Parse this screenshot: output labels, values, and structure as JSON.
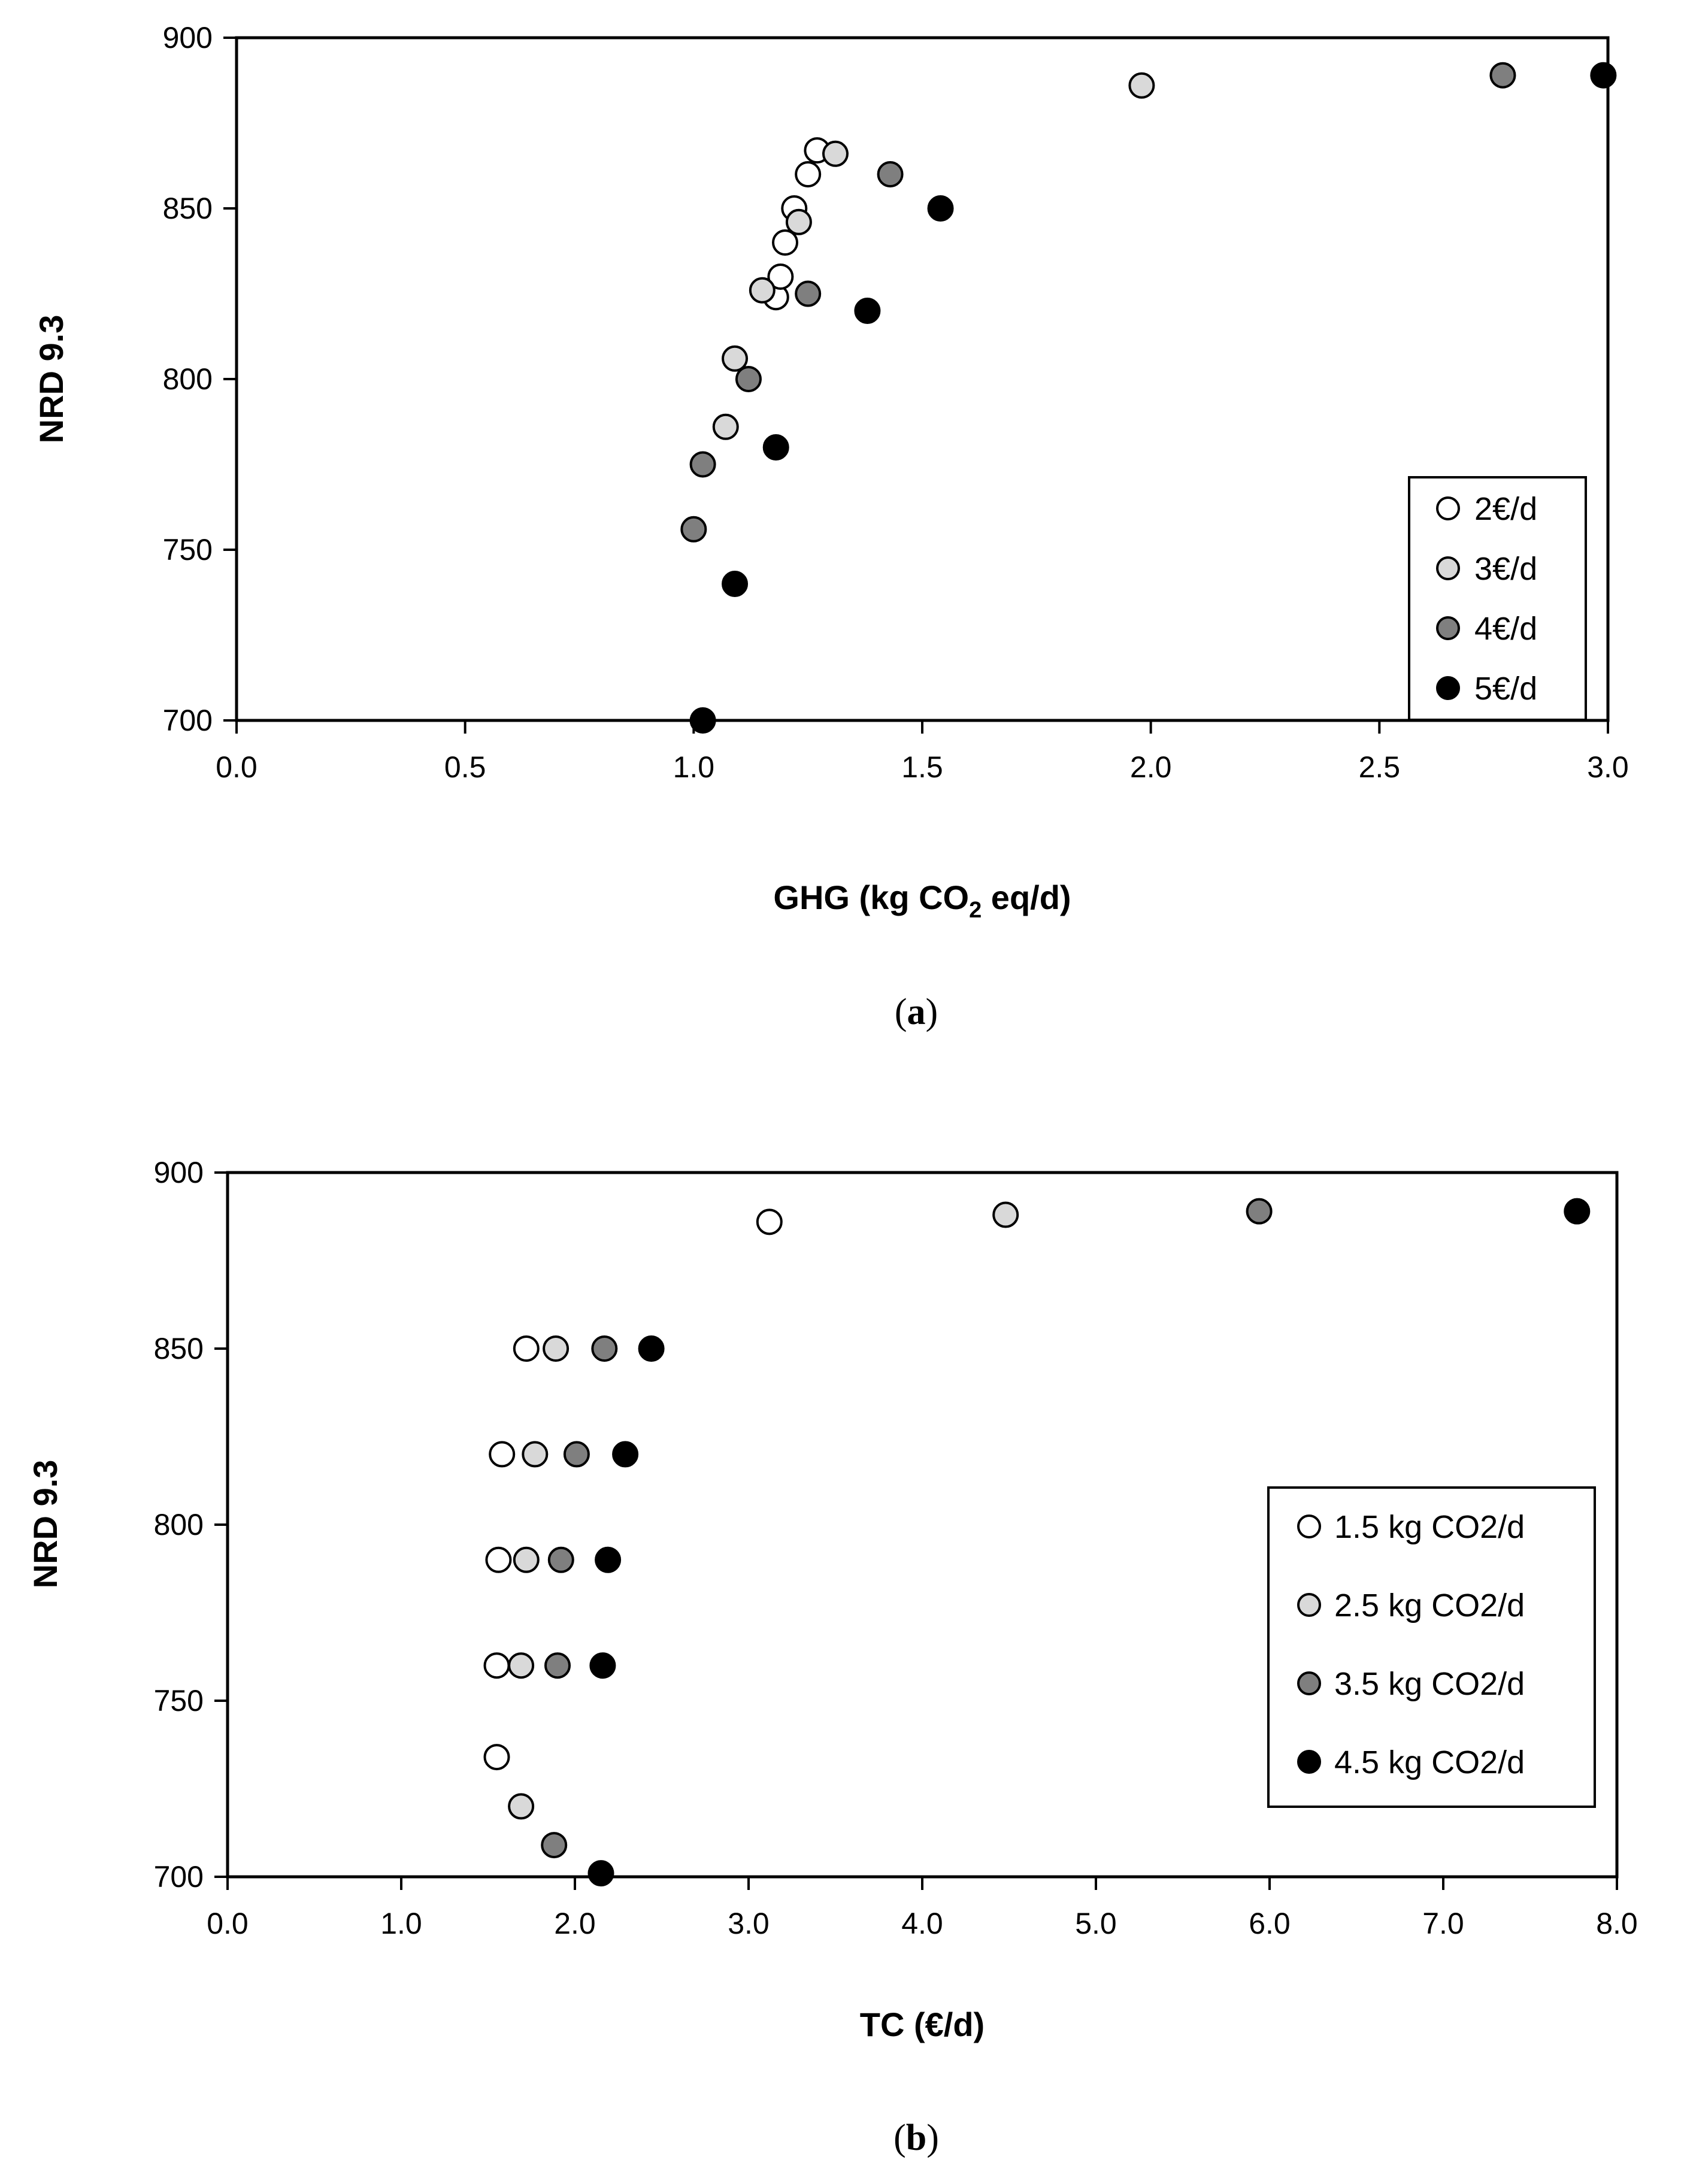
{
  "chart_data": [
    {
      "type": "scatter",
      "panel_label": "a",
      "xlabel": "GHG (kg CO2 eq/d)",
      "xlabel_parts": {
        "before": "GHG (kg CO",
        "sub": "2",
        "after": " eq/d)"
      },
      "ylabel": "NRD 9.3",
      "xlim": [
        0.0,
        3.0
      ],
      "ylim": [
        700,
        900
      ],
      "xticks": [
        "0.0",
        "0.5",
        "1.0",
        "1.5",
        "2.0",
        "2.5",
        "3.0"
      ],
      "yticks": [
        "700",
        "750",
        "800",
        "850",
        "900"
      ],
      "legend_position": "bottom-right",
      "series": [
        {
          "name": "2€/d",
          "color": "#ffffff",
          "points": [
            [
              1.18,
              824
            ],
            [
              1.19,
              830
            ],
            [
              1.2,
              840
            ],
            [
              1.22,
              850
            ],
            [
              1.25,
              860
            ],
            [
              1.27,
              867
            ]
          ]
        },
        {
          "name": "3€/d",
          "color": "#d9d9d9",
          "points": [
            [
              1.07,
              786
            ],
            [
              1.09,
              806
            ],
            [
              1.15,
              826
            ],
            [
              1.23,
              846
            ],
            [
              1.31,
              866
            ],
            [
              1.98,
              886
            ]
          ]
        },
        {
          "name": "4€/d",
          "color": "#7f7f7f",
          "points": [
            [
              1.0,
              756
            ],
            [
              1.02,
              775
            ],
            [
              1.12,
              800
            ],
            [
              1.25,
              825
            ],
            [
              1.43,
              860
            ],
            [
              2.77,
              889
            ]
          ]
        },
        {
          "name": "5€/d",
          "color": "#000000",
          "points": [
            [
              1.02,
              700
            ],
            [
              1.09,
              740
            ],
            [
              1.18,
              780
            ],
            [
              1.38,
              820
            ],
            [
              1.54,
              850
            ],
            [
              2.99,
              889
            ]
          ]
        }
      ]
    },
    {
      "type": "scatter",
      "panel_label": "b",
      "xlabel": "TC (€/d)",
      "ylabel": "NRD 9.3",
      "xlim": [
        0.0,
        8.0
      ],
      "ylim": [
        700,
        900
      ],
      "xticks": [
        "0.0",
        "1.0",
        "2.0",
        "3.0",
        "4.0",
        "5.0",
        "6.0",
        "7.0",
        "8.0"
      ],
      "yticks": [
        "700",
        "750",
        "800",
        "850",
        "900"
      ],
      "legend_position": "right",
      "series": [
        {
          "name": "1.5 kg CO2/d",
          "color": "#ffffff",
          "points": [
            [
              1.55,
              734
            ],
            [
              1.55,
              760
            ],
            [
              1.56,
              790
            ],
            [
              1.58,
              820
            ],
            [
              1.72,
              850
            ],
            [
              3.12,
              886
            ]
          ]
        },
        {
          "name": "2.5 kg CO2/d",
          "color": "#d9d9d9",
          "points": [
            [
              1.69,
              720
            ],
            [
              1.69,
              760
            ],
            [
              1.72,
              790
            ],
            [
              1.77,
              820
            ],
            [
              1.89,
              850
            ],
            [
              4.48,
              888
            ]
          ]
        },
        {
          "name": "3.5 kg CO2/d",
          "color": "#7f7f7f",
          "points": [
            [
              1.88,
              709
            ],
            [
              1.9,
              760
            ],
            [
              1.92,
              790
            ],
            [
              2.01,
              820
            ],
            [
              2.17,
              850
            ],
            [
              5.94,
              889
            ]
          ]
        },
        {
          "name": "4.5 kg CO2/d",
          "color": "#000000",
          "points": [
            [
              2.15,
              701
            ],
            [
              2.16,
              760
            ],
            [
              2.19,
              790
            ],
            [
              2.29,
              820
            ],
            [
              2.44,
              850
            ],
            [
              7.77,
              889
            ]
          ]
        }
      ]
    }
  ]
}
